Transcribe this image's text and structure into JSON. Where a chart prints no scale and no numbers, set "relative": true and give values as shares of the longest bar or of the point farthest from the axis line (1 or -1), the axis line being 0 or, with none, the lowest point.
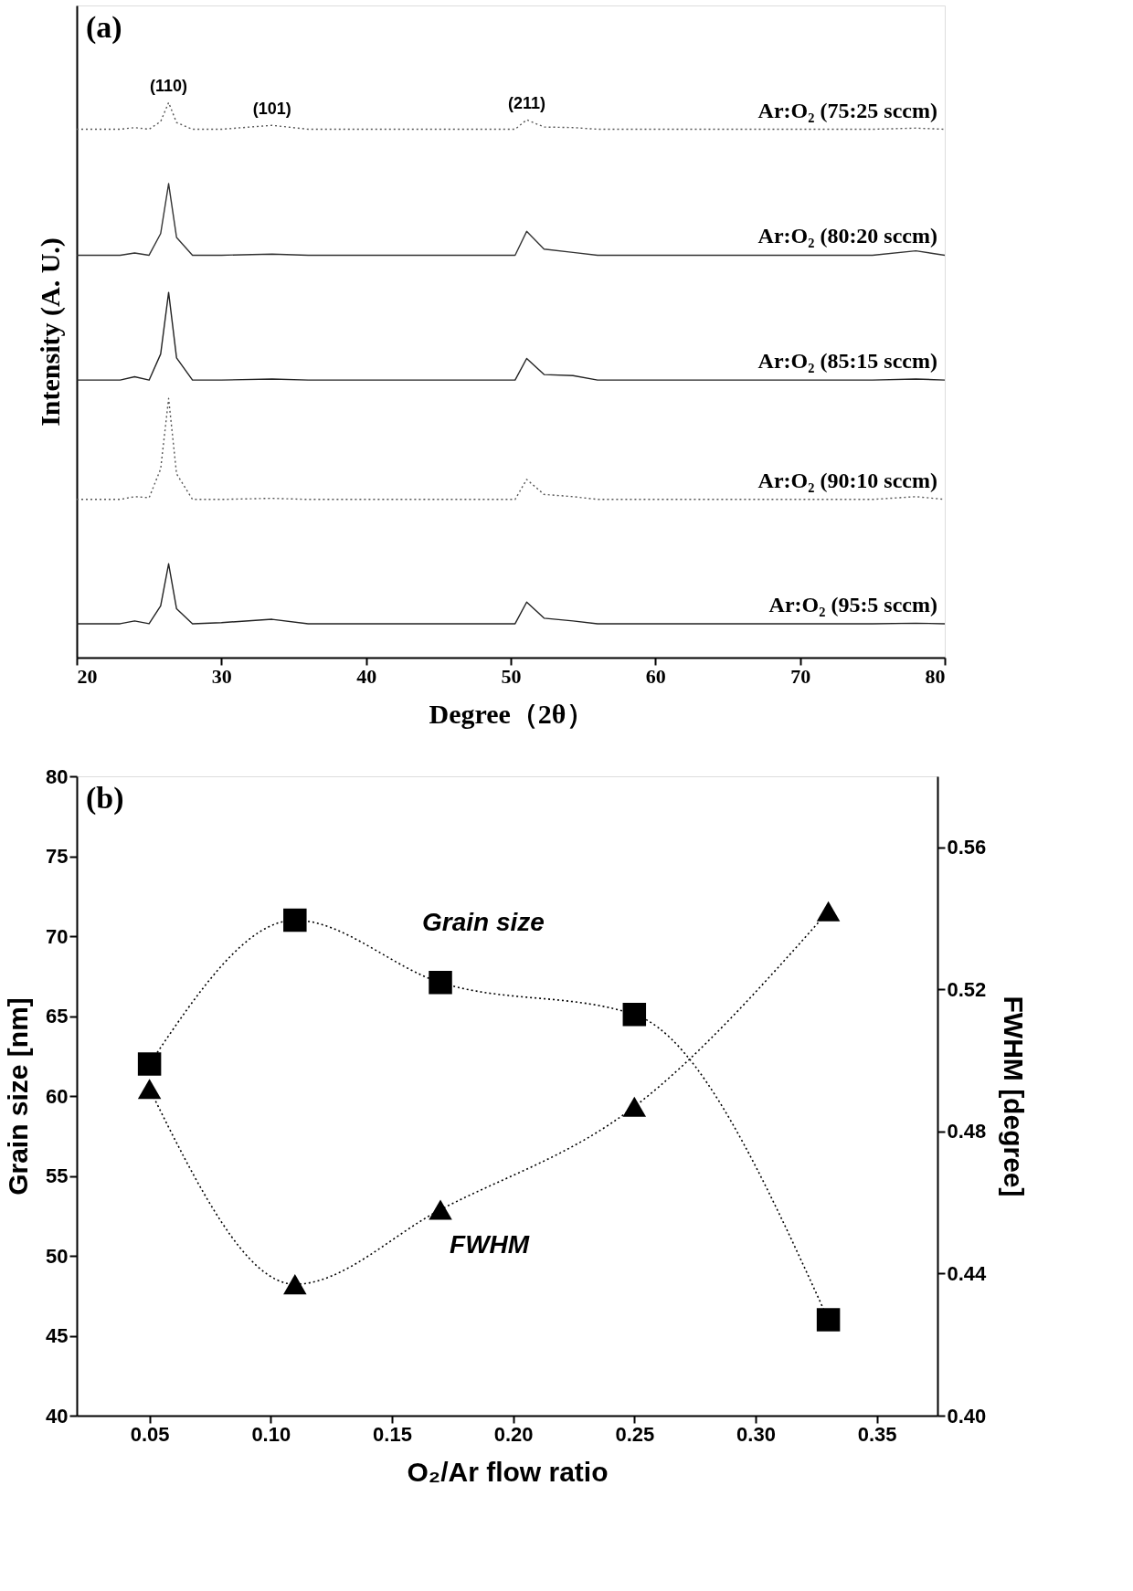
{
  "chart_data": [
    {
      "type": "line",
      "relative": true,
      "tick_labels": "x",
      "xlabel": "Degree（2θ）",
      "ylabel": "Intensity (A. U.)",
      "annotations": [
        "(a)",
        {
          "text": "(110)",
          "x": 26.35,
          "y": 1.0
        },
        {
          "text": "(101)",
          "x": 33.5,
          "y": 0.959
        },
        {
          "text": "(211)",
          "x": 51.1,
          "y": 0.969
        }
      ],
      "xlim": [
        20,
        80
      ],
      "xticks": [
        20,
        30,
        40,
        50,
        60,
        70,
        80
      ],
      "x": [
        20,
        23,
        24,
        25,
        25.8,
        26.35,
        26.9,
        28,
        30,
        33.5,
        36,
        40,
        45,
        50.3,
        51.1,
        52.3,
        54.3,
        56,
        60,
        65,
        70,
        75,
        78,
        80
      ],
      "series": [
        {
          "name": "Ar:O₂ (75:25 sccm)",
          "color": "#555555",
          "line_style": "dotted",
          "values": [
            0.952,
            0.952,
            0.955,
            0.952,
            0.966,
            1.0,
            0.964,
            0.952,
            0.952,
            0.959,
            0.952,
            0.952,
            0.952,
            0.952,
            0.969,
            0.956,
            0.955,
            0.952,
            0.952,
            0.952,
            0.952,
            0.952,
            0.954,
            0.952
          ]
        },
        {
          "name": "Ar:O₂ (80:20 sccm)",
          "color": "#333333",
          "line_style": "solid",
          "values": [
            0.725,
            0.725,
            0.729,
            0.725,
            0.764,
            0.854,
            0.757,
            0.725,
            0.725,
            0.727,
            0.725,
            0.725,
            0.725,
            0.725,
            0.768,
            0.736,
            0.73,
            0.725,
            0.725,
            0.725,
            0.725,
            0.725,
            0.733,
            0.725
          ]
        },
        {
          "name": "Ar:O₂ (85:15 sccm)",
          "color": "#222222",
          "line_style": "solid",
          "values": [
            0.5,
            0.5,
            0.506,
            0.5,
            0.547,
            0.658,
            0.54,
            0.5,
            0.5,
            0.502,
            0.5,
            0.5,
            0.5,
            0.5,
            0.539,
            0.51,
            0.508,
            0.5,
            0.5,
            0.5,
            0.5,
            0.5,
            0.502,
            0.5
          ]
        },
        {
          "name": "Ar:O₂ (90:10 sccm)",
          "color": "#555555",
          "line_style": "dotted",
          "values": [
            0.285,
            0.285,
            0.29,
            0.288,
            0.34,
            0.467,
            0.331,
            0.285,
            0.285,
            0.287,
            0.285,
            0.285,
            0.285,
            0.285,
            0.321,
            0.294,
            0.29,
            0.285,
            0.285,
            0.285,
            0.285,
            0.285,
            0.29,
            0.285
          ]
        },
        {
          "name": "Ar:O₂ (95:5 sccm)",
          "color": "#222222",
          "line_style": "solid",
          "values": [
            0.061,
            0.061,
            0.066,
            0.061,
            0.093,
            0.169,
            0.088,
            0.061,
            0.063,
            0.069,
            0.061,
            0.061,
            0.061,
            0.061,
            0.1,
            0.071,
            0.066,
            0.061,
            0.061,
            0.061,
            0.061,
            0.061,
            0.062,
            0.061
          ]
        }
      ]
    },
    {
      "type": "line",
      "xlabel": "O₂/Ar flow ratio",
      "ylabel": "Grain size [nm]",
      "y2label": "FWHM [degree]",
      "annotations": [
        "(b)"
      ],
      "line_style": "dotted",
      "xlim": [
        0.02,
        0.375
      ],
      "xticks": [
        {
          "value": 0.05,
          "label": "0.05"
        },
        {
          "value": 0.1,
          "label": "0.10"
        },
        {
          "value": 0.15,
          "label": "0.15"
        },
        {
          "value": 0.2,
          "label": "0.20"
        },
        {
          "value": 0.25,
          "label": "0.25"
        },
        {
          "value": 0.3,
          "label": "0.30"
        },
        {
          "value": 0.35,
          "label": "0.35"
        }
      ],
      "ylim": [
        40,
        80
      ],
      "yticks": [
        40,
        45,
        50,
        55,
        60,
        65,
        70,
        75,
        80
      ],
      "y2lim": [
        0.4,
        0.58
      ],
      "y2ticks": [
        {
          "value": 0.4,
          "label": "0.40"
        },
        {
          "value": 0.44,
          "label": "0.44"
        },
        {
          "value": 0.48,
          "label": "0.48"
        },
        {
          "value": 0.52,
          "label": "0.52"
        },
        {
          "value": 0.56,
          "label": "0.56"
        }
      ],
      "x": [
        0.05,
        0.11,
        0.17,
        0.25,
        0.33
      ],
      "series": [
        {
          "name": "Grain size",
          "color": "#000000",
          "marker": "square",
          "values": [
            62.0,
            71.0,
            67.1,
            65.1,
            46.0
          ]
        },
        {
          "name": "FWHM",
          "color": "#000000",
          "marker": "triangle",
          "axis": "y2",
          "values": [
            0.492,
            0.437,
            0.458,
            0.487,
            0.542
          ]
        }
      ]
    }
  ]
}
